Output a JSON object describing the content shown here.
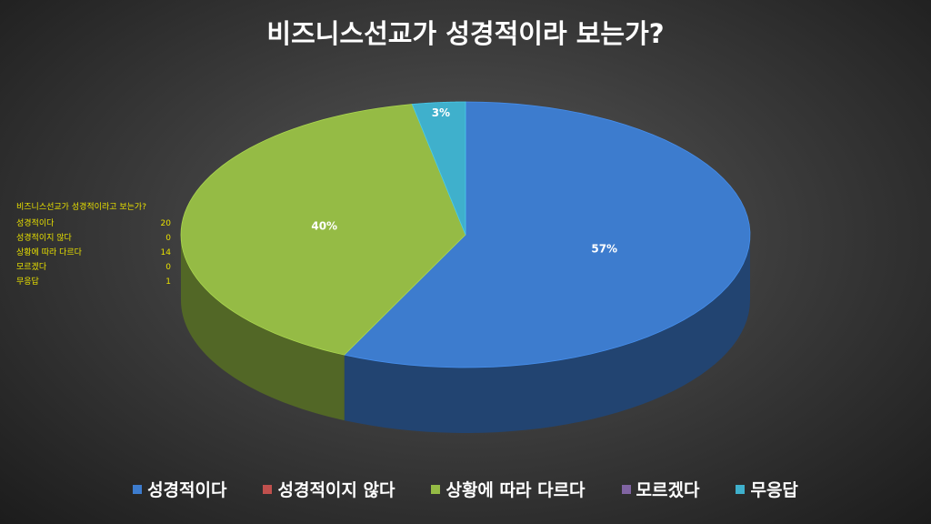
{
  "chart_data": {
    "type": "pie3d",
    "title": "비즈니스선교가 성경적이라 보는가?",
    "categories": [
      "성경적이다",
      "성경적이지 않다",
      "상황에 따라 다르다",
      "모르겠다",
      "무응답"
    ],
    "values": [
      57,
      0,
      40,
      0,
      3
    ],
    "value_labels": [
      "57%",
      null,
      "40%",
      null,
      "3%"
    ],
    "colors": [
      "#3d7cce",
      "#c0504d",
      "#95bb45",
      "#8064a2",
      "#3fb0cc"
    ]
  },
  "table": {
    "title": "비즈니스선교가 성경적이라고 보는가?",
    "rows": [
      [
        "성경적이다",
        20
      ],
      [
        "성경적이지 않다",
        0
      ],
      [
        "상황에 따라 다르다",
        14
      ],
      [
        "모르겠다",
        0
      ],
      [
        "무응답",
        1
      ]
    ]
  }
}
